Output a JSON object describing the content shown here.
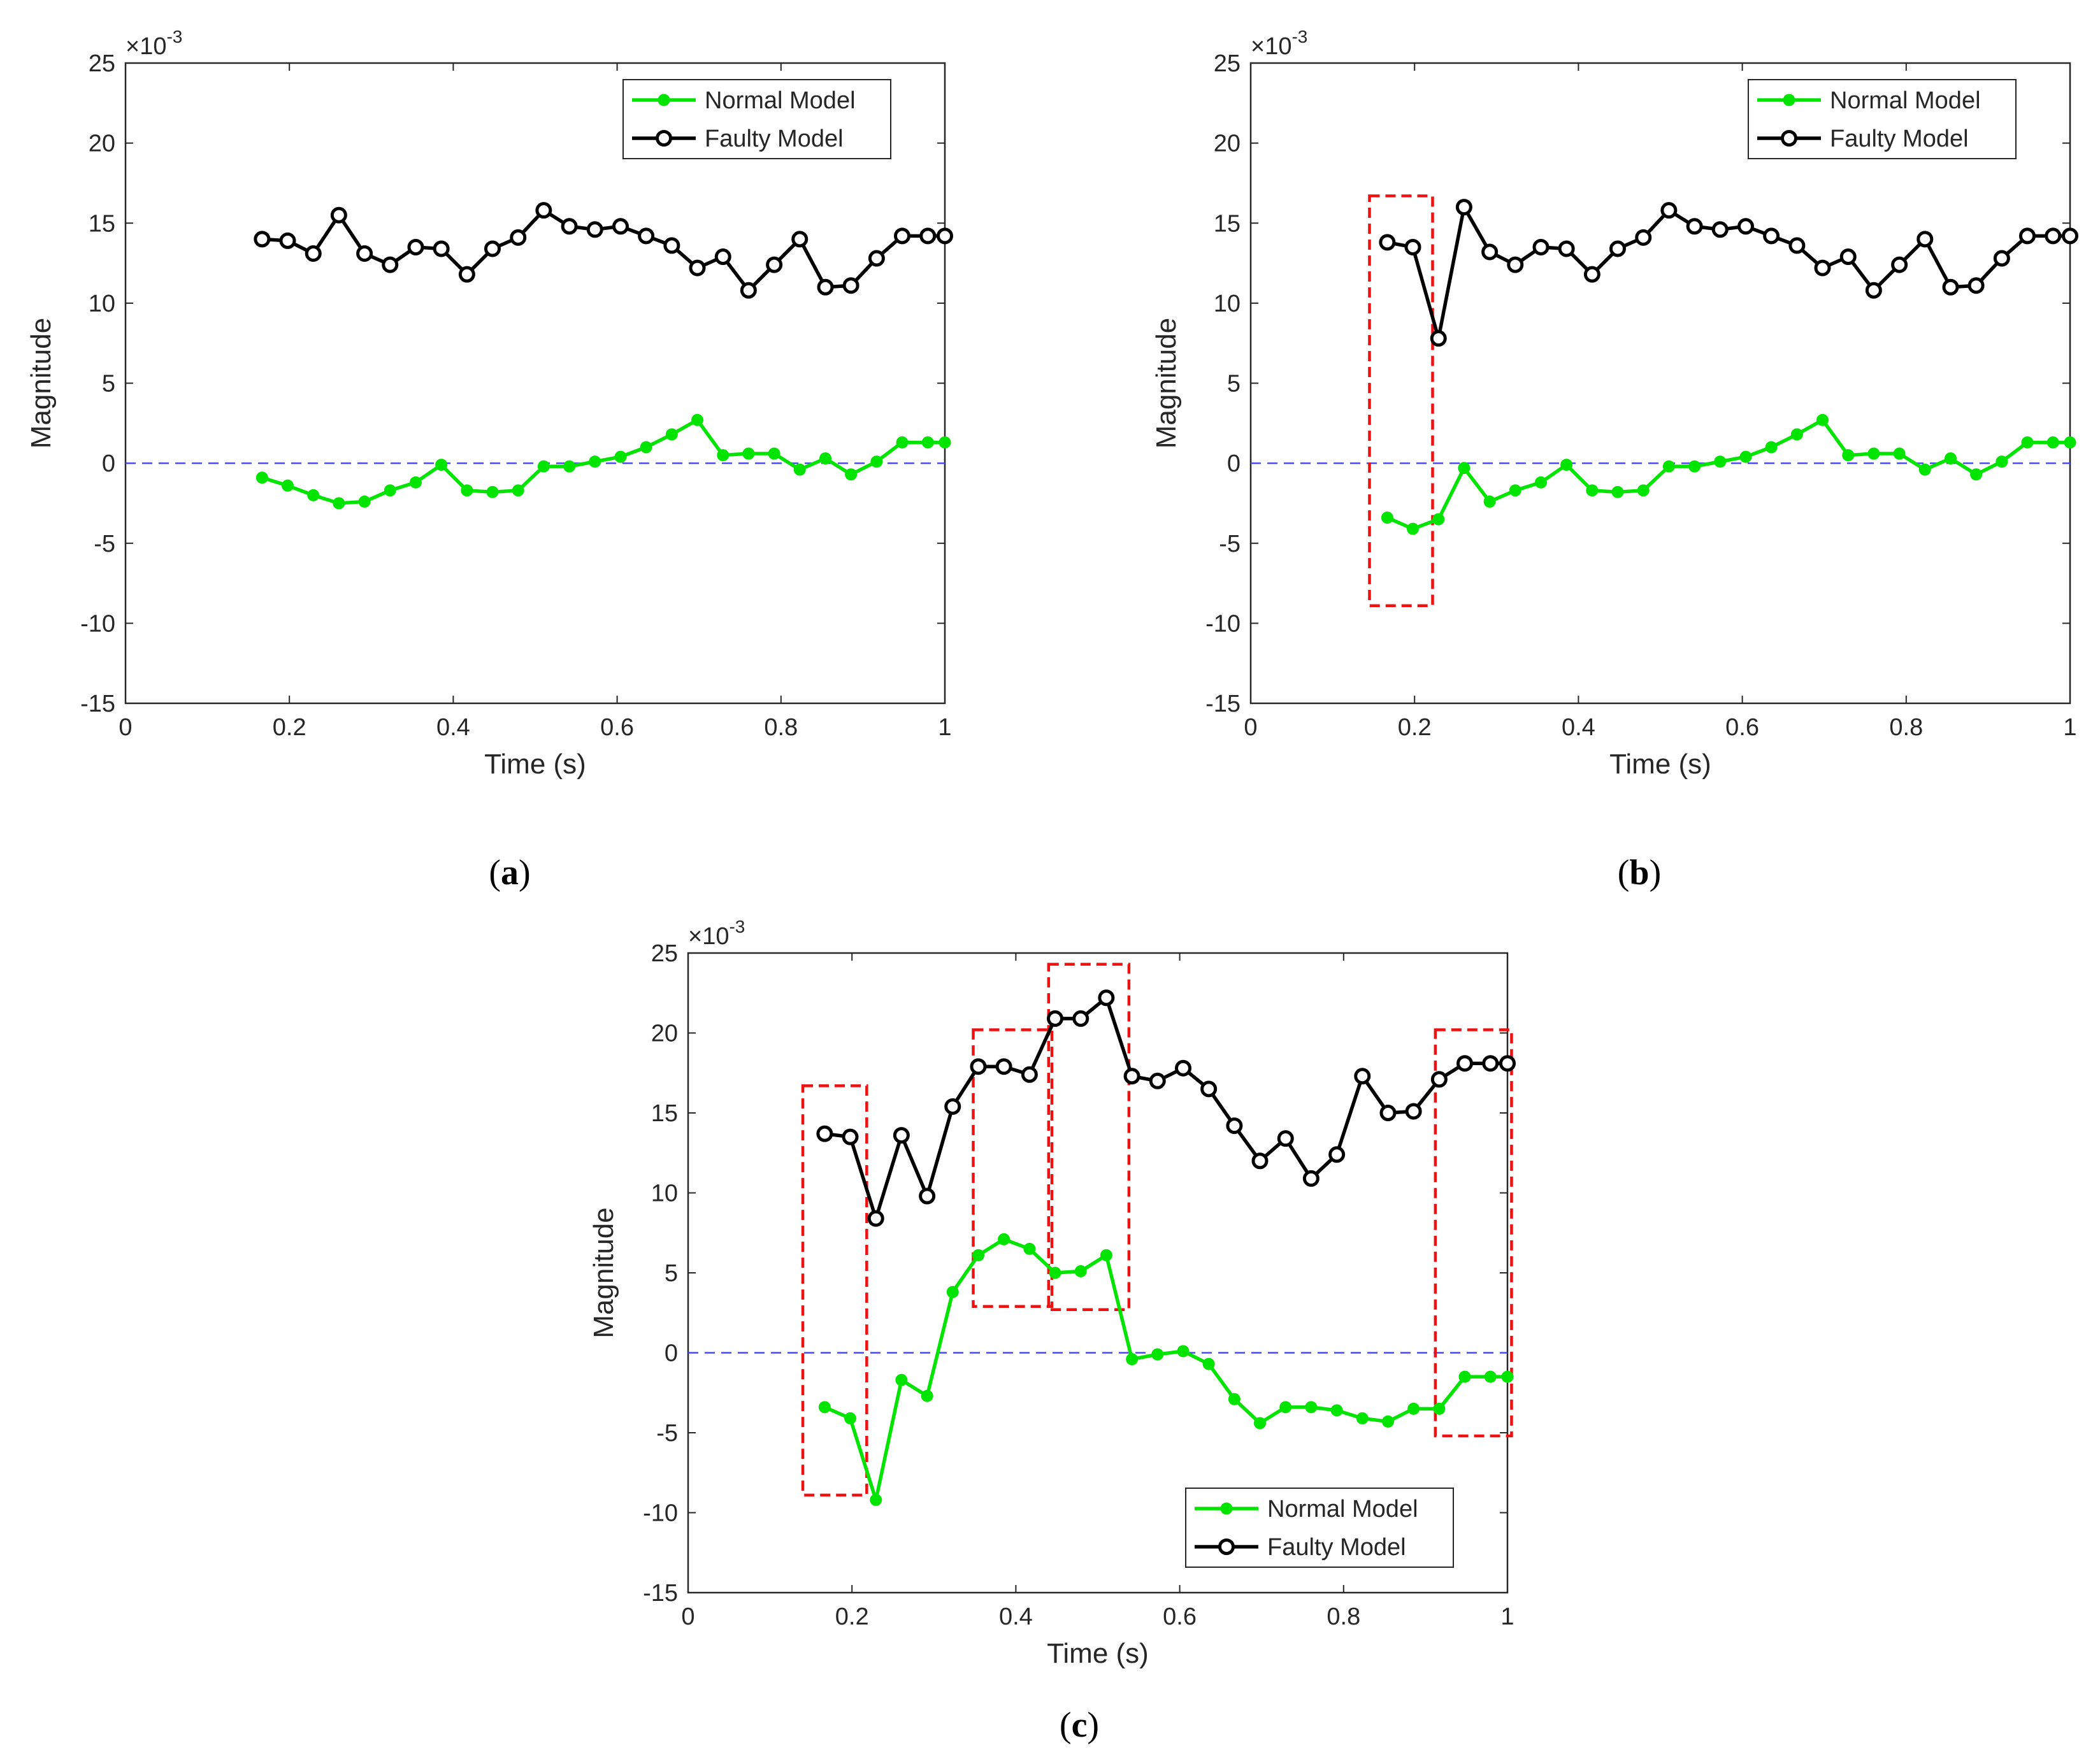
{
  "chart_data": [
    {
      "id": "a",
      "type": "line",
      "caption_letter": "a",
      "caption_left": "(",
      "caption_right": ")",
      "xlabel": "Time (s)",
      "ylabel": "Magnitude",
      "exponent_prefix": "×10",
      "exponent": "-3",
      "xlim": [
        0,
        1
      ],
      "ylim": [
        -15,
        25
      ],
      "xticks": [
        0,
        0.2,
        0.4,
        0.6,
        0.8,
        1
      ],
      "xtick_labels": [
        "0",
        "0.2",
        "0.4",
        "0.6",
        "0.8",
        "1"
      ],
      "yticks": [
        -15,
        -10,
        -5,
        0,
        5,
        10,
        15,
        20,
        25
      ],
      "ytick_labels": [
        "-15",
        "-10",
        "-5",
        "0",
        "5",
        "10",
        "15",
        "20",
        "25"
      ],
      "legend_position": "top-right",
      "reference_line": 0,
      "x": [
        0.1667,
        0.1979,
        0.2292,
        0.2604,
        0.2917,
        0.3229,
        0.3542,
        0.3854,
        0.4167,
        0.4479,
        0.4792,
        0.5104,
        0.5417,
        0.5729,
        0.6042,
        0.6354,
        0.6667,
        0.6979,
        0.7292,
        0.7604,
        0.7917,
        0.8229,
        0.8542,
        0.8854,
        0.9167,
        0.9479,
        0.9792,
        1.0
      ],
      "series": [
        {
          "name": "Normal Model",
          "color": "#00e400",
          "marker": "dot",
          "values": [
            -0.9,
            -1.4,
            -2.0,
            -2.5,
            -2.4,
            -1.7,
            -1.2,
            -0.1,
            -1.7,
            -1.8,
            -1.7,
            -0.2,
            -0.2,
            0.1,
            0.4,
            1.0,
            1.8,
            2.7,
            0.5,
            0.6,
            0.6,
            -0.4,
            0.3,
            -0.7,
            0.1,
            1.3,
            1.3,
            1.3
          ]
        },
        {
          "name": "Faulty Model",
          "color": "#000000",
          "marker": "circle",
          "values": [
            14.0,
            13.9,
            13.1,
            15.5,
            13.1,
            12.4,
            13.5,
            13.4,
            11.8,
            13.4,
            14.1,
            15.8,
            14.8,
            14.6,
            14.8,
            14.2,
            13.6,
            12.2,
            12.9,
            10.8,
            12.4,
            14.0,
            11.0,
            11.1,
            12.8,
            14.2,
            14.2,
            14.2
          ]
        }
      ],
      "highlight_boxes": []
    },
    {
      "id": "b",
      "type": "line",
      "caption_letter": "b",
      "caption_left": "(",
      "caption_right": ")",
      "xlabel": "Time (s)",
      "ylabel": "Magnitude",
      "exponent_prefix": "×10",
      "exponent": "-3",
      "xlim": [
        0,
        1
      ],
      "ylim": [
        -15,
        25
      ],
      "xticks": [
        0,
        0.2,
        0.4,
        0.6,
        0.8,
        1
      ],
      "xtick_labels": [
        "0",
        "0.2",
        "0.4",
        "0.6",
        "0.8",
        "1"
      ],
      "yticks": [
        -15,
        -10,
        -5,
        0,
        5,
        10,
        15,
        20,
        25
      ],
      "ytick_labels": [
        "-15",
        "-10",
        "-5",
        "0",
        "5",
        "10",
        "15",
        "20",
        "25"
      ],
      "legend_position": "top-right",
      "reference_line": 0,
      "x": [
        0.1667,
        0.1979,
        0.2292,
        0.2604,
        0.2917,
        0.3229,
        0.3542,
        0.3854,
        0.4167,
        0.4479,
        0.4792,
        0.5104,
        0.5417,
        0.5729,
        0.6042,
        0.6354,
        0.6667,
        0.6979,
        0.7292,
        0.7604,
        0.7917,
        0.8229,
        0.8542,
        0.8854,
        0.9167,
        0.9479,
        0.9792,
        1.0
      ],
      "series": [
        {
          "name": "Normal Model",
          "color": "#00e400",
          "marker": "dot",
          "values": [
            -3.4,
            -4.1,
            -3.5,
            -0.3,
            -2.4,
            -1.7,
            -1.2,
            -0.1,
            -1.7,
            -1.8,
            -1.7,
            -0.2,
            -0.2,
            0.1,
            0.4,
            1.0,
            1.8,
            2.7,
            0.5,
            0.6,
            0.6,
            -0.4,
            0.3,
            -0.7,
            0.1,
            1.3,
            1.3,
            1.3
          ]
        },
        {
          "name": "Faulty Model",
          "color": "#000000",
          "marker": "circle",
          "values": [
            13.8,
            13.5,
            7.8,
            16.0,
            13.2,
            12.4,
            13.5,
            13.4,
            11.8,
            13.4,
            14.1,
            15.8,
            14.8,
            14.6,
            14.8,
            14.2,
            13.6,
            12.2,
            12.9,
            10.8,
            12.4,
            14.0,
            11.0,
            11.1,
            12.8,
            14.2,
            14.2,
            14.2
          ]
        }
      ],
      "highlight_boxes": [
        {
          "x0": 0.145,
          "x1": 0.222,
          "y0": -8.9,
          "y1": 16.7
        }
      ]
    },
    {
      "id": "c",
      "type": "line",
      "caption_letter": "c",
      "caption_left": "(",
      "caption_right": ")",
      "xlabel": "Time (s)",
      "ylabel": "Magnitude",
      "exponent_prefix": "×10",
      "exponent": "-3",
      "xlim": [
        0,
        1
      ],
      "ylim": [
        -15,
        25
      ],
      "xticks": [
        0,
        0.2,
        0.4,
        0.6,
        0.8,
        1
      ],
      "xtick_labels": [
        "0",
        "0.2",
        "0.4",
        "0.6",
        "0.8",
        "1"
      ],
      "yticks": [
        -15,
        -10,
        -5,
        0,
        5,
        10,
        15,
        20,
        25
      ],
      "ytick_labels": [
        "-15",
        "-10",
        "-5",
        "0",
        "5",
        "10",
        "15",
        "20",
        "25"
      ],
      "legend_position": "bottom-right",
      "reference_line": 0,
      "x": [
        0.1667,
        0.1979,
        0.2292,
        0.2604,
        0.2917,
        0.3229,
        0.3542,
        0.3854,
        0.4167,
        0.4479,
        0.4792,
        0.5104,
        0.5417,
        0.5729,
        0.6042,
        0.6354,
        0.6667,
        0.6979,
        0.7292,
        0.7604,
        0.7917,
        0.8229,
        0.8542,
        0.8854,
        0.9167,
        0.9479,
        0.9792,
        1.0
      ],
      "series": [
        {
          "name": "Normal Model",
          "color": "#00e400",
          "marker": "dot",
          "values": [
            -3.4,
            -4.1,
            -9.2,
            -1.7,
            -2.7,
            3.8,
            6.1,
            7.1,
            6.5,
            5.0,
            5.1,
            6.1,
            -0.4,
            -0.1,
            0.1,
            -0.7,
            -2.9,
            -4.4,
            -3.4,
            -3.4,
            -3.6,
            -4.1,
            -4.3,
            -3.5,
            -3.5,
            -1.5,
            -1.5,
            -1.5
          ]
        },
        {
          "name": "Faulty Model",
          "color": "#000000",
          "marker": "circle",
          "values": [
            13.7,
            13.5,
            8.4,
            13.6,
            9.8,
            15.4,
            17.9,
            17.9,
            17.4,
            20.9,
            20.9,
            22.2,
            17.3,
            17.0,
            17.8,
            16.5,
            14.2,
            12.0,
            13.4,
            10.9,
            12.4,
            17.3,
            15.0,
            15.1,
            17.1,
            18.1,
            18.1,
            18.1
          ]
        }
      ],
      "highlight_boxes": [
        {
          "x0": 0.14,
          "x1": 0.218,
          "y0": -8.9,
          "y1": 16.7
        },
        {
          "x0": 0.348,
          "x1": 0.444,
          "y0": 2.9,
          "y1": 20.2
        },
        {
          "x0": 0.44,
          "x1": 0.538,
          "y0": 2.7,
          "y1": 24.3
        },
        {
          "x0": 0.912,
          "x1": 1.005,
          "y0": -5.2,
          "y1": 20.2
        }
      ]
    }
  ]
}
